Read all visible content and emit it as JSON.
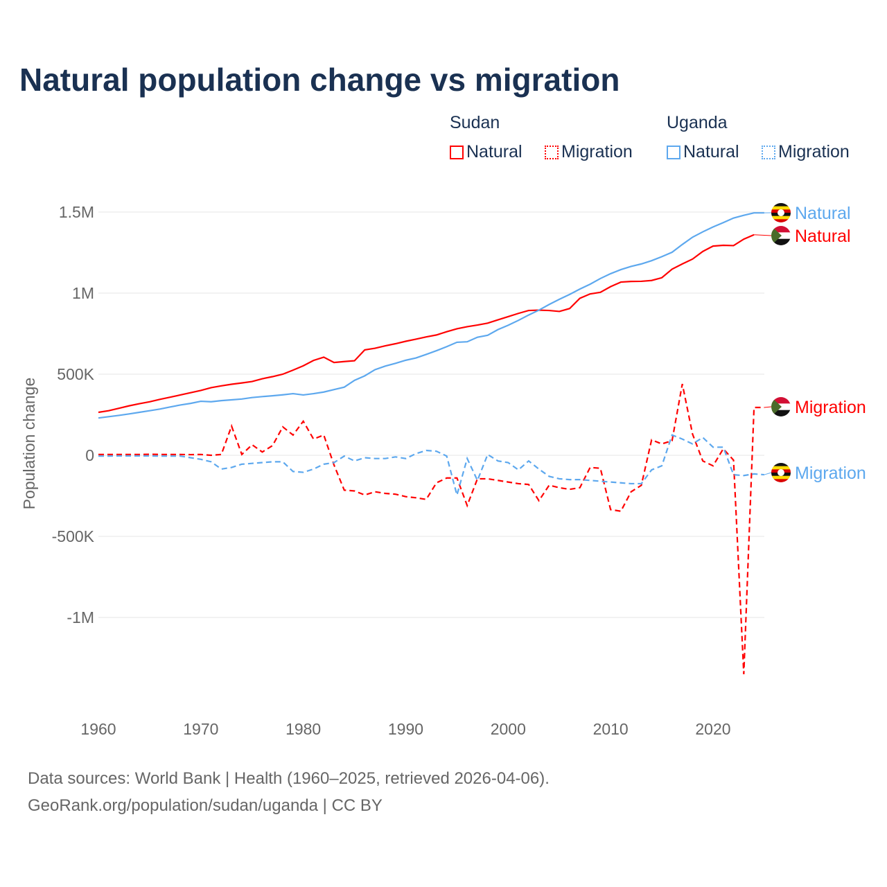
{
  "chart_data": {
    "type": "line",
    "title": "Natural population change vs migration",
    "ylabel": "Population change",
    "xlabel": "",
    "xlim": [
      1960,
      2025
    ],
    "ylim": [
      -1500000,
      1600000
    ],
    "xticks": [
      "1960",
      "1970",
      "1980",
      "1990",
      "2000",
      "2010",
      "2020"
    ],
    "yticks": [
      {
        "v": 1500000,
        "l": "1.5M"
      },
      {
        "v": 1000000,
        "l": "1M"
      },
      {
        "v": 500000,
        "l": "500K"
      },
      {
        "v": 0,
        "l": "0"
      },
      {
        "v": -500000,
        "l": "-500K"
      },
      {
        "v": -1000000,
        "l": "-1M"
      }
    ],
    "legend": {
      "groups": [
        {
          "name": "Sudan",
          "items": [
            "Natural",
            "Migration"
          ]
        },
        {
          "name": "Uganda",
          "items": [
            "Natural",
            "Migration"
          ]
        }
      ],
      "placement": "top-right"
    },
    "series": [
      {
        "name": "Sudan Natural",
        "country": "Sudan",
        "kind": "Natural",
        "color": "#ff0000",
        "dash": false,
        "start": 1960,
        "values_k": [
          265,
          275,
          290,
          305,
          318,
          330,
          345,
          358,
          372,
          386,
          400,
          417,
          428,
          438,
          446,
          455,
          472,
          485,
          500,
          525,
          552,
          585,
          605,
          572,
          578,
          583,
          650,
          660,
          675,
          688,
          703,
          716,
          730,
          742,
          762,
          780,
          793,
          803,
          815,
          835,
          855,
          875,
          893,
          895,
          893,
          887,
          905,
          968,
          995,
          1005,
          1040,
          1068,
          1072,
          1073,
          1078,
          1095,
          1148,
          1180,
          1210,
          1257,
          1290,
          1295,
          1293,
          1333,
          1360
        ],
        "end_label": "Natural"
      },
      {
        "name": "Sudan Migration",
        "country": "Sudan",
        "kind": "Migration",
        "color": "#ff0000",
        "dash": true,
        "start": 1960,
        "values_k": [
          5,
          5,
          5,
          5,
          5,
          6,
          5,
          5,
          5,
          4,
          5,
          0,
          5,
          180,
          5,
          65,
          20,
          60,
          175,
          125,
          210,
          100,
          125,
          -60,
          -215,
          -220,
          -245,
          -225,
          -235,
          -240,
          -255,
          -262,
          -272,
          -170,
          -140,
          -140,
          -310,
          -145,
          -145,
          -155,
          -165,
          -175,
          -180,
          -280,
          -185,
          -200,
          -210,
          -200,
          -75,
          -80,
          -335,
          -345,
          -225,
          -185,
          95,
          70,
          90,
          440,
          130,
          -35,
          -65,
          40,
          -30,
          -1350,
          295,
          295
        ],
        "end_label": "Migration"
      },
      {
        "name": "Uganda Natural",
        "country": "Uganda",
        "kind": "Natural",
        "color": "#5da8ee",
        "dash": false,
        "start": 1960,
        "values_k": [
          230,
          238,
          246,
          255,
          265,
          275,
          285,
          298,
          310,
          320,
          333,
          330,
          337,
          342,
          347,
          356,
          362,
          367,
          373,
          380,
          372,
          380,
          390,
          405,
          420,
          462,
          490,
          528,
          550,
          567,
          586,
          600,
          622,
          645,
          670,
          697,
          700,
          728,
          740,
          775,
          802,
          832,
          865,
          895,
          930,
          962,
          992,
          1025,
          1055,
          1090,
          1120,
          1145,
          1165,
          1180,
          1200,
          1225,
          1252,
          1300,
          1345,
          1378,
          1408,
          1435,
          1463,
          1480,
          1495,
          1495
        ],
        "end_label": "Natural"
      },
      {
        "name": "Uganda Migration",
        "country": "Uganda",
        "kind": "Migration",
        "color": "#5da8ee",
        "dash": true,
        "start": 1960,
        "values_k": [
          -5,
          -5,
          -4,
          -4,
          -4,
          -4,
          -5,
          -5,
          -5,
          -15,
          -25,
          -40,
          -85,
          -75,
          -55,
          -50,
          -45,
          -40,
          -40,
          -100,
          -105,
          -85,
          -55,
          -45,
          -5,
          -35,
          -15,
          -20,
          -20,
          -10,
          -20,
          10,
          30,
          25,
          -5,
          -245,
          -20,
          -155,
          5,
          -35,
          -45,
          -90,
          -35,
          -85,
          -130,
          -145,
          -150,
          -150,
          -155,
          -160,
          -165,
          -170,
          -175,
          -175,
          -90,
          -65,
          125,
          100,
          70,
          110,
          50,
          50,
          -120,
          -125,
          -115,
          -120
        ],
        "end_label": "Migration"
      }
    ]
  },
  "sources": [
    "Data sources: World Bank | Health (1960–2025, retrieved 2026-04-06).",
    "GeoRank.org/population/sudan/uganda | CC BY"
  ]
}
